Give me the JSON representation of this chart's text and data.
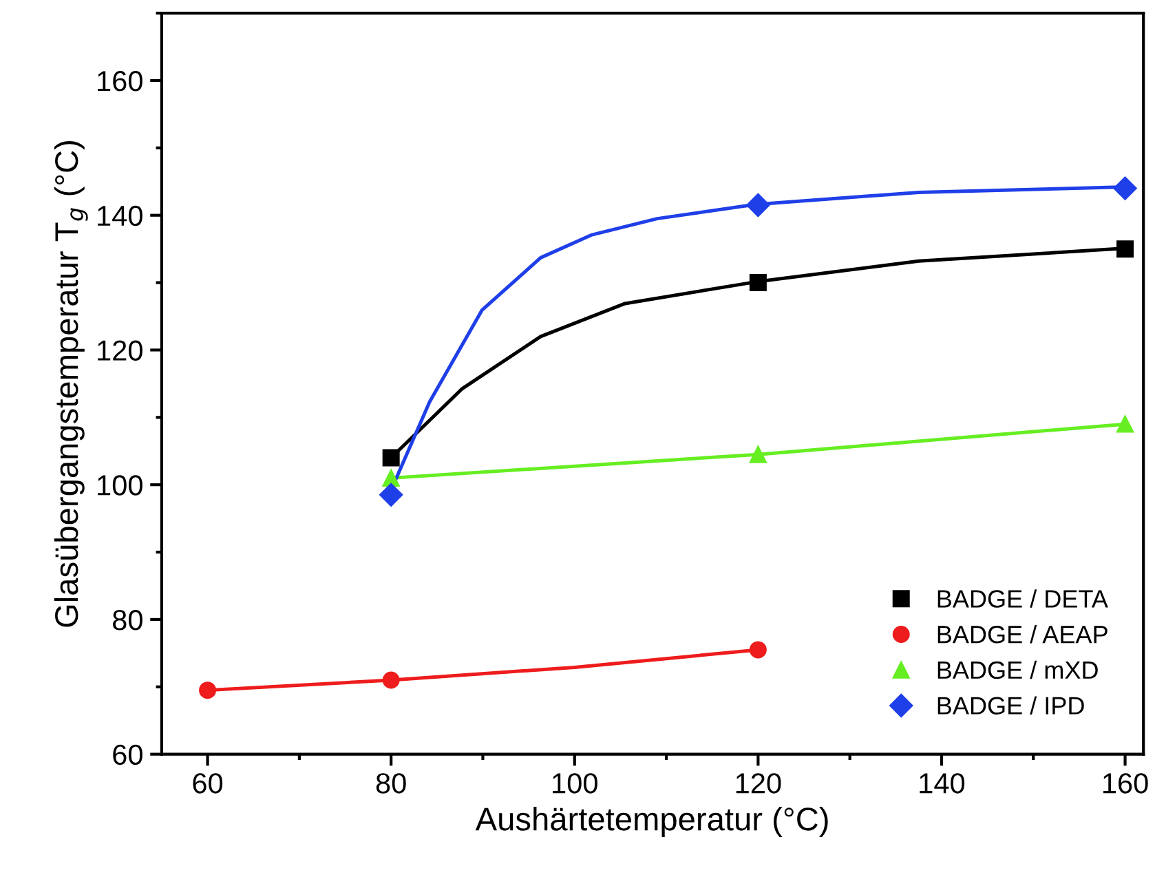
{
  "chart_data": {
    "type": "scatter",
    "xlabel": "Aushärtetemperatur (°C)",
    "ylabel": "Glasübergangstemperatur T$_{g}$ (°C)",
    "xlim": [
      55,
      162
    ],
    "xticks": [
      60,
      80,
      100,
      120,
      140,
      160
    ],
    "ylim": [
      60,
      170
    ],
    "yticks": [
      60,
      80,
      100,
      120,
      140,
      160
    ],
    "grid": false,
    "legend": "bottom right",
    "line_style": "solid",
    "series": [
      {
        "type": "line",
        "color": "#000000",
        "x": [
          80,
          87.7,
          96.3,
          105.5,
          119.7,
          137.5,
          160
        ],
        "values": [
          104,
          114.2,
          122,
          126.9,
          130.1,
          133.2,
          135.1
        ]
      },
      {
        "type": "line",
        "color": "#ee1c1c",
        "x": [
          60,
          80,
          100,
          120
        ],
        "values": [
          69.5,
          71,
          72.9,
          75.5
        ]
      },
      {
        "type": "line",
        "color": "#66ee22",
        "x": [
          80,
          120,
          160
        ],
        "values": [
          101,
          104.5,
          109
        ]
      },
      {
        "type": "line",
        "color": "#1f3fe8",
        "x": [
          80,
          84.2,
          89.9,
          96.3,
          101.9,
          109,
          119.7,
          137.5,
          160
        ],
        "values": [
          99.2,
          112.3,
          125.9,
          133.7,
          137.1,
          139.5,
          141.6,
          143.4,
          144.2
        ]
      },
      {
        "name": "BADGE / DETA",
        "color": "#000000",
        "marker": "square",
        "x": [
          80,
          120,
          160
        ],
        "values": [
          104,
          130,
          135
        ]
      },
      {
        "name": "BADGE / AEAP",
        "color": "#ee1c1c",
        "marker": "circle",
        "x": [
          60,
          80,
          120
        ],
        "values": [
          69.5,
          71,
          75.5
        ]
      },
      {
        "name": "BADGE / mXD",
        "color": "#66ee22",
        "marker": "triangle",
        "x": [
          80,
          120,
          160
        ],
        "values": [
          101,
          104.5,
          109
        ]
      },
      {
        "name": "BADGE / IPD",
        "color": "#1f3fe8",
        "marker": "diamond",
        "x": [
          80,
          120,
          160
        ],
        "values": [
          98.5,
          141.5,
          144
        ]
      }
    ]
  }
}
